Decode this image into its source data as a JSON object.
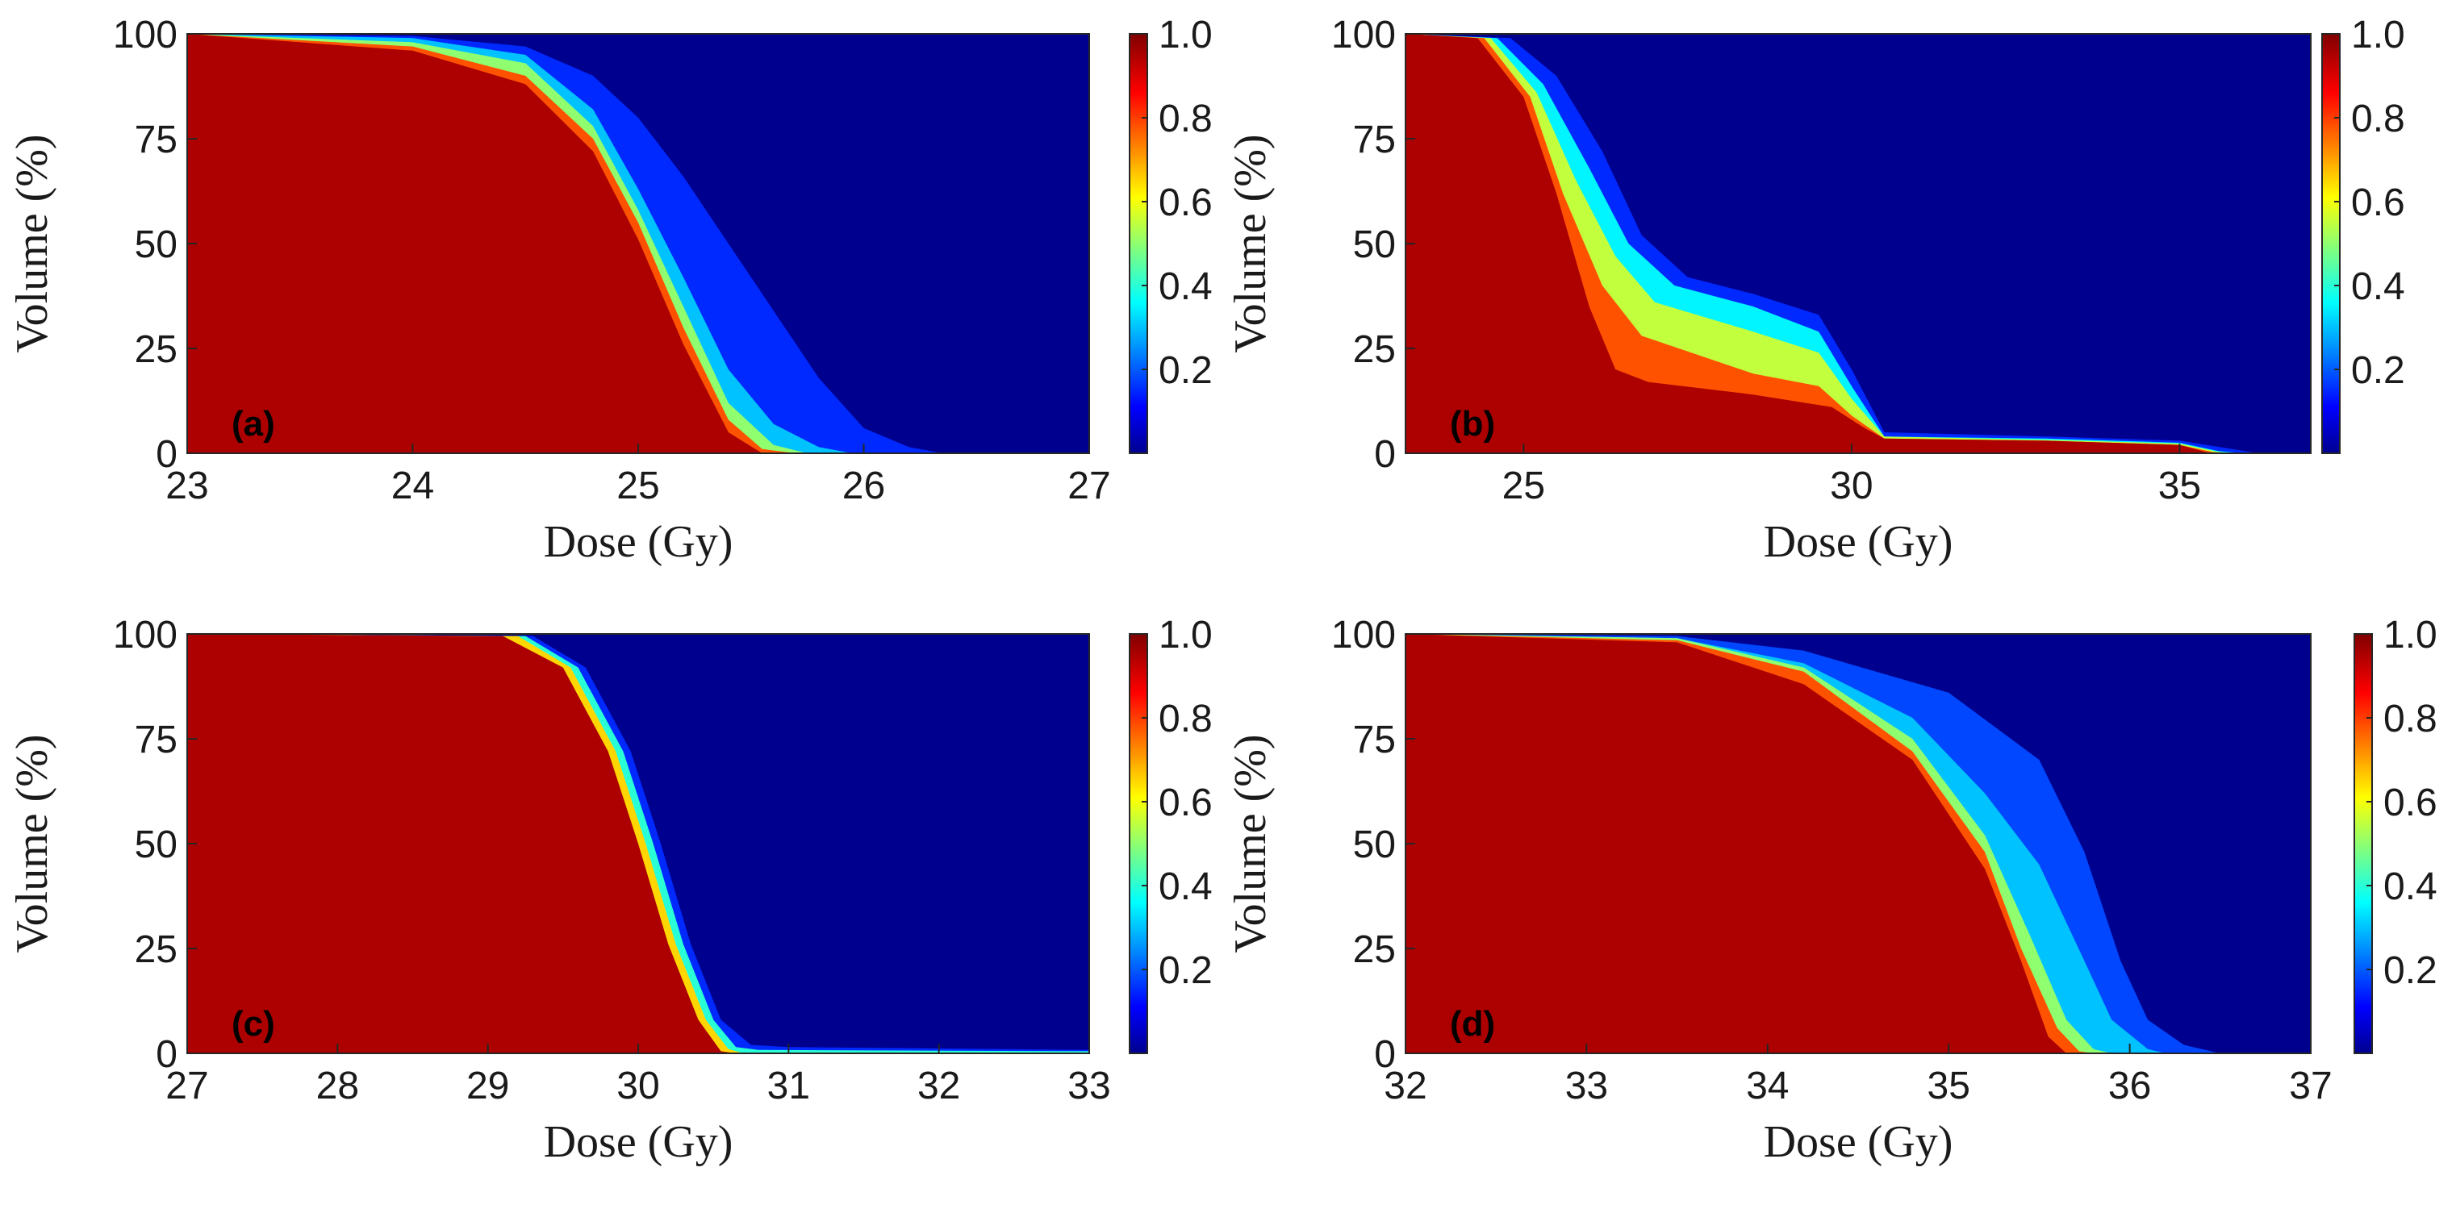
{
  "figure": {
    "colormap": "jet",
    "background_color": "#00008f",
    "axes_color": "#262626"
  },
  "chart_data": [
    {
      "type": "heatmap",
      "panel_label": "(a)",
      "xlabel": "Dose (Gy)",
      "ylabel": "Volume (%)",
      "xlim": [
        23,
        27
      ],
      "ylim": [
        0,
        100
      ],
      "xticks": [
        23,
        24,
        25,
        26,
        27
      ],
      "xtick_labels": [
        "23",
        "24",
        "25",
        "26",
        "27"
      ],
      "yticks": [
        0,
        25,
        50,
        75,
        100
      ],
      "ytick_labels": [
        "0",
        "25",
        "50",
        "75",
        "100"
      ],
      "colorbar": {
        "ticks": [
          0.2,
          0.4,
          0.6,
          0.8,
          1.0
        ],
        "tick_labels": [
          "0.2",
          "0.4",
          "0.6",
          "0.8",
          "1.0"
        ],
        "range": [
          0,
          1
        ]
      },
      "bands": [
        {
          "level": 0.15,
          "curve": [
            [
              23.0,
              100
            ],
            [
              24.0,
              99.5
            ],
            [
              24.5,
              97
            ],
            [
              24.8,
              90
            ],
            [
              25.0,
              80
            ],
            [
              25.2,
              66
            ],
            [
              25.4,
              50
            ],
            [
              25.6,
              34
            ],
            [
              25.8,
              18
            ],
            [
              26.0,
              6
            ],
            [
              26.2,
              1.5
            ],
            [
              26.35,
              0
            ]
          ]
        },
        {
          "level": 0.3,
          "curve": [
            [
              23.0,
              100
            ],
            [
              24.0,
              99
            ],
            [
              24.5,
              95
            ],
            [
              24.8,
              82
            ],
            [
              25.0,
              63
            ],
            [
              25.2,
              42
            ],
            [
              25.4,
              20
            ],
            [
              25.6,
              7
            ],
            [
              25.8,
              1.5
            ],
            [
              25.95,
              0
            ]
          ]
        },
        {
          "level": 0.5,
          "curve": [
            [
              23.0,
              100
            ],
            [
              24.0,
              98
            ],
            [
              24.5,
              93
            ],
            [
              24.8,
              78
            ],
            [
              25.0,
              58
            ],
            [
              25.2,
              35
            ],
            [
              25.4,
              12
            ],
            [
              25.6,
              2
            ],
            [
              25.75,
              0
            ]
          ]
        },
        {
          "level": 0.78,
          "curve": [
            [
              23.0,
              100
            ],
            [
              24.0,
              97
            ],
            [
              24.5,
              90
            ],
            [
              24.8,
              75
            ],
            [
              25.0,
              55
            ],
            [
              25.2,
              30
            ],
            [
              25.4,
              8
            ],
            [
              25.55,
              1
            ],
            [
              25.7,
              0
            ]
          ]
        },
        {
          "level": 0.95,
          "curve": [
            [
              23.0,
              100
            ],
            [
              24.0,
              96
            ],
            [
              24.5,
              88
            ],
            [
              24.8,
              72
            ],
            [
              25.0,
              51
            ],
            [
              25.2,
              26
            ],
            [
              25.4,
              5
            ],
            [
              25.55,
              0
            ]
          ]
        }
      ]
    },
    {
      "type": "heatmap",
      "panel_label": "(b)",
      "xlabel": "Dose (Gy)",
      "ylabel": "Volume (%)",
      "xlim": [
        23.2,
        37.0
      ],
      "ylim": [
        0,
        100
      ],
      "xticks": [
        25,
        30,
        35
      ],
      "xtick_labels": [
        "25",
        "30",
        "35"
      ],
      "yticks": [
        0,
        25,
        50,
        75,
        100
      ],
      "ytick_labels": [
        "0",
        "25",
        "50",
        "75",
        "100"
      ],
      "colorbar": {
        "ticks": [
          0.2,
          0.4,
          0.6,
          0.8,
          1.0
        ],
        "tick_labels": [
          "0.2",
          "0.4",
          "0.6",
          "0.8",
          "1.0"
        ],
        "range": [
          0,
          1
        ]
      },
      "bands": [
        {
          "level": 0.15,
          "curve": [
            [
              23.2,
              100
            ],
            [
              24.8,
              99
            ],
            [
              25.5,
              90
            ],
            [
              26.2,
              72
            ],
            [
              26.8,
              52
            ],
            [
              27.5,
              42
            ],
            [
              28.5,
              38
            ],
            [
              29.5,
              33
            ],
            [
              30.0,
              20
            ],
            [
              30.5,
              5
            ],
            [
              33.0,
              4
            ],
            [
              35.0,
              3
            ],
            [
              35.8,
              1
            ],
            [
              36.2,
              0
            ]
          ]
        },
        {
          "level": 0.35,
          "curve": [
            [
              23.2,
              100
            ],
            [
              24.6,
              99
            ],
            [
              25.3,
              88
            ],
            [
              26.0,
              68
            ],
            [
              26.6,
              50
            ],
            [
              27.3,
              40
            ],
            [
              28.5,
              35
            ],
            [
              29.5,
              29
            ],
            [
              30.0,
              16
            ],
            [
              30.5,
              4
            ],
            [
              33.0,
              3.5
            ],
            [
              35.0,
              2.5
            ],
            [
              35.6,
              0.5
            ],
            [
              36.0,
              0
            ]
          ]
        },
        {
          "level": 0.55,
          "curve": [
            [
              23.2,
              100
            ],
            [
              24.5,
              99
            ],
            [
              25.2,
              86
            ],
            [
              25.8,
              65
            ],
            [
              26.4,
              47
            ],
            [
              27.0,
              36
            ],
            [
              28.5,
              29
            ],
            [
              29.5,
              24
            ],
            [
              30.0,
              13
            ],
            [
              30.5,
              4
            ],
            [
              33.0,
              3.2
            ],
            [
              35.0,
              2.3
            ],
            [
              35.6,
              0.3
            ],
            [
              35.9,
              0
            ]
          ]
        },
        {
          "level": 0.78,
          "curve": [
            [
              23.2,
              100
            ],
            [
              24.4,
              99
            ],
            [
              25.1,
              85
            ],
            [
              25.6,
              62
            ],
            [
              26.2,
              40
            ],
            [
              26.8,
              28
            ],
            [
              28.5,
              19
            ],
            [
              29.5,
              16
            ],
            [
              30.0,
              9
            ],
            [
              30.5,
              3.5
            ],
            [
              33.0,
              3
            ],
            [
              35.0,
              2
            ],
            [
              35.5,
              0.3
            ],
            [
              35.8,
              0
            ]
          ]
        },
        {
          "level": 0.95,
          "curve": [
            [
              23.2,
              100
            ],
            [
              24.3,
              99
            ],
            [
              25.0,
              85
            ],
            [
              25.5,
              62
            ],
            [
              26.0,
              35
            ],
            [
              26.4,
              20
            ],
            [
              26.9,
              17
            ],
            [
              28.5,
              14
            ],
            [
              29.7,
              11
            ],
            [
              30.2,
              6
            ],
            [
              30.5,
              3.5
            ],
            [
              33.0,
              3
            ],
            [
              35.0,
              2
            ],
            [
              35.4,
              0.3
            ],
            [
              35.6,
              0
            ]
          ]
        }
      ]
    },
    {
      "type": "heatmap",
      "panel_label": "(c)",
      "xlabel": "Dose (Gy)",
      "ylabel": "Volume (%)",
      "xlim": [
        27,
        33
      ],
      "ylim": [
        0,
        100
      ],
      "xticks": [
        27,
        28,
        29,
        30,
        31,
        32,
        33
      ],
      "xtick_labels": [
        "27",
        "28",
        "29",
        "30",
        "31",
        "32",
        "33"
      ],
      "yticks": [
        0,
        25,
        50,
        75,
        100
      ],
      "ytick_labels": [
        "0",
        "25",
        "50",
        "75",
        "100"
      ],
      "colorbar": {
        "ticks": [
          0.2,
          0.4,
          0.6,
          0.8,
          1.0
        ],
        "tick_labels": [
          "0.2",
          "0.4",
          "0.6",
          "0.8",
          "1.0"
        ],
        "range": [
          0,
          1
        ]
      },
      "bands": [
        {
          "level": 0.15,
          "curve": [
            [
              27.0,
              100
            ],
            [
              29.3,
              99.5
            ],
            [
              29.65,
              92
            ],
            [
              29.95,
              72
            ],
            [
              30.15,
              50
            ],
            [
              30.35,
              26
            ],
            [
              30.55,
              8
            ],
            [
              30.75,
              2
            ],
            [
              31.0,
              1.5
            ],
            [
              33.0,
              0.8
            ]
          ]
        },
        {
          "level": 0.4,
          "curve": [
            [
              27.0,
              100
            ],
            [
              29.25,
              99.5
            ],
            [
              29.6,
              92
            ],
            [
              29.9,
              72
            ],
            [
              30.1,
              50
            ],
            [
              30.3,
              26
            ],
            [
              30.5,
              8
            ],
            [
              30.65,
              1.5
            ],
            [
              30.8,
              0.8
            ],
            [
              33.0,
              0.5
            ]
          ]
        },
        {
          "level": 0.65,
          "curve": [
            [
              27.0,
              100
            ],
            [
              29.2,
              99.5
            ],
            [
              29.55,
              92
            ],
            [
              29.85,
              72
            ],
            [
              30.05,
              50
            ],
            [
              30.25,
              26
            ],
            [
              30.45,
              8
            ],
            [
              30.6,
              1
            ],
            [
              30.7,
              0
            ]
          ]
        },
        {
          "level": 0.95,
          "curve": [
            [
              27.0,
              100
            ],
            [
              29.1,
              99.5
            ],
            [
              29.5,
              92
            ],
            [
              29.8,
              72
            ],
            [
              30.0,
              50
            ],
            [
              30.2,
              26
            ],
            [
              30.4,
              8
            ],
            [
              30.55,
              0.5
            ],
            [
              30.65,
              0
            ]
          ]
        }
      ]
    },
    {
      "type": "heatmap",
      "panel_label": "(d)",
      "xlabel": "Dose (Gy)",
      "ylabel": "Volume (%)",
      "xlim": [
        32,
        37
      ],
      "ylim": [
        0,
        100
      ],
      "xticks": [
        32,
        33,
        34,
        35,
        36,
        37
      ],
      "xtick_labels": [
        "32",
        "33",
        "34",
        "35",
        "36",
        "37"
      ],
      "yticks": [
        0,
        25,
        50,
        75,
        100
      ],
      "ytick_labels": [
        "0",
        "25",
        "50",
        "75",
        "100"
      ],
      "colorbar": {
        "ticks": [
          0.2,
          0.4,
          0.6,
          0.8,
          1.0
        ],
        "tick_labels": [
          "0.2",
          "0.4",
          "0.6",
          "0.8",
          "1.0"
        ],
        "range": [
          0,
          1
        ]
      },
      "bands": [
        {
          "level": 0.18,
          "curve": [
            [
              32.0,
              100
            ],
            [
              33.5,
              99.5
            ],
            [
              34.2,
              96
            ],
            [
              35.0,
              86
            ],
            [
              35.5,
              70
            ],
            [
              35.75,
              48
            ],
            [
              35.95,
              22
            ],
            [
              36.1,
              8
            ],
            [
              36.3,
              2
            ],
            [
              36.5,
              0
            ]
          ]
        },
        {
          "level": 0.3,
          "curve": [
            [
              32.0,
              100
            ],
            [
              33.5,
              99
            ],
            [
              34.2,
              93
            ],
            [
              34.8,
              80
            ],
            [
              35.2,
              62
            ],
            [
              35.5,
              45
            ],
            [
              35.75,
              22
            ],
            [
              35.9,
              8
            ],
            [
              36.1,
              1
            ],
            [
              36.2,
              0
            ]
          ]
        },
        {
          "level": 0.5,
          "curve": [
            [
              32.0,
              100
            ],
            [
              33.5,
              99
            ],
            [
              34.2,
              92
            ],
            [
              34.8,
              75
            ],
            [
              35.2,
              52
            ],
            [
              35.45,
              28
            ],
            [
              35.65,
              8
            ],
            [
              35.8,
              1
            ],
            [
              35.9,
              0
            ]
          ]
        },
        {
          "level": 0.78,
          "curve": [
            [
              32.0,
              100
            ],
            [
              33.5,
              98.5
            ],
            [
              34.2,
              91
            ],
            [
              34.8,
              72
            ],
            [
              35.2,
              48
            ],
            [
              35.4,
              25
            ],
            [
              35.6,
              6
            ],
            [
              35.72,
              0.5
            ],
            [
              35.8,
              0
            ]
          ]
        },
        {
          "level": 0.95,
          "curve": [
            [
              32.0,
              100
            ],
            [
              33.5,
              98
            ],
            [
              34.2,
              88
            ],
            [
              34.8,
              70
            ],
            [
              35.2,
              44
            ],
            [
              35.4,
              22
            ],
            [
              35.55,
              4
            ],
            [
              35.65,
              0
            ]
          ]
        }
      ]
    }
  ]
}
